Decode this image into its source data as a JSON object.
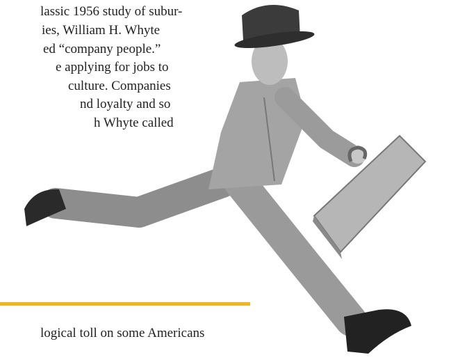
{
  "text_lines": [
    "lassic 1956 study of subur-",
    "ies, William H. Whyte",
    "ed “company people.”",
    "e applying for jobs to",
    "culture. Companies",
    "nd loyalty and so",
    "h Whyte called"
  ],
  "last_line": "logical toll on some Americans"
}
